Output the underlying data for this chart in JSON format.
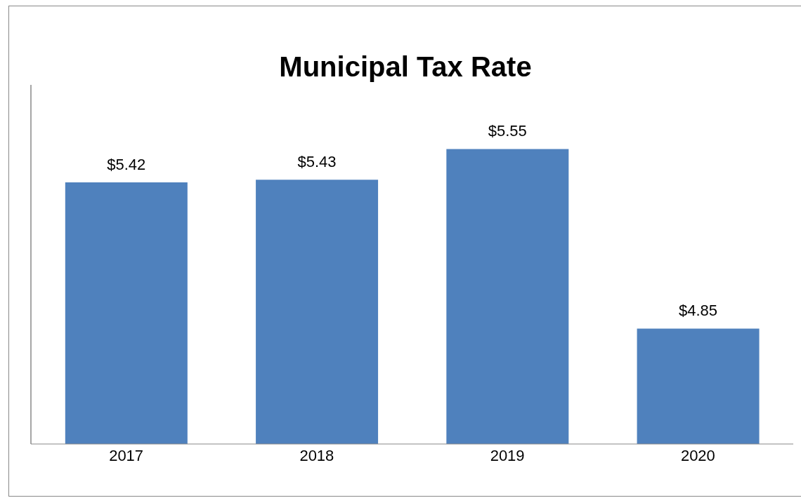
{
  "chart_data": {
    "type": "bar",
    "title": "Municipal Tax Rate",
    "categories": [
      "2017",
      "2018",
      "2019",
      "2020"
    ],
    "values": [
      5.42,
      5.43,
      5.55,
      4.85
    ],
    "value_labels": [
      "$5.42",
      "$5.43",
      "$5.55",
      "$4.85"
    ],
    "color": "#4f81bd",
    "ylim": [
      4.4,
      5.8
    ],
    "tick_labels": "x",
    "grid": false
  }
}
